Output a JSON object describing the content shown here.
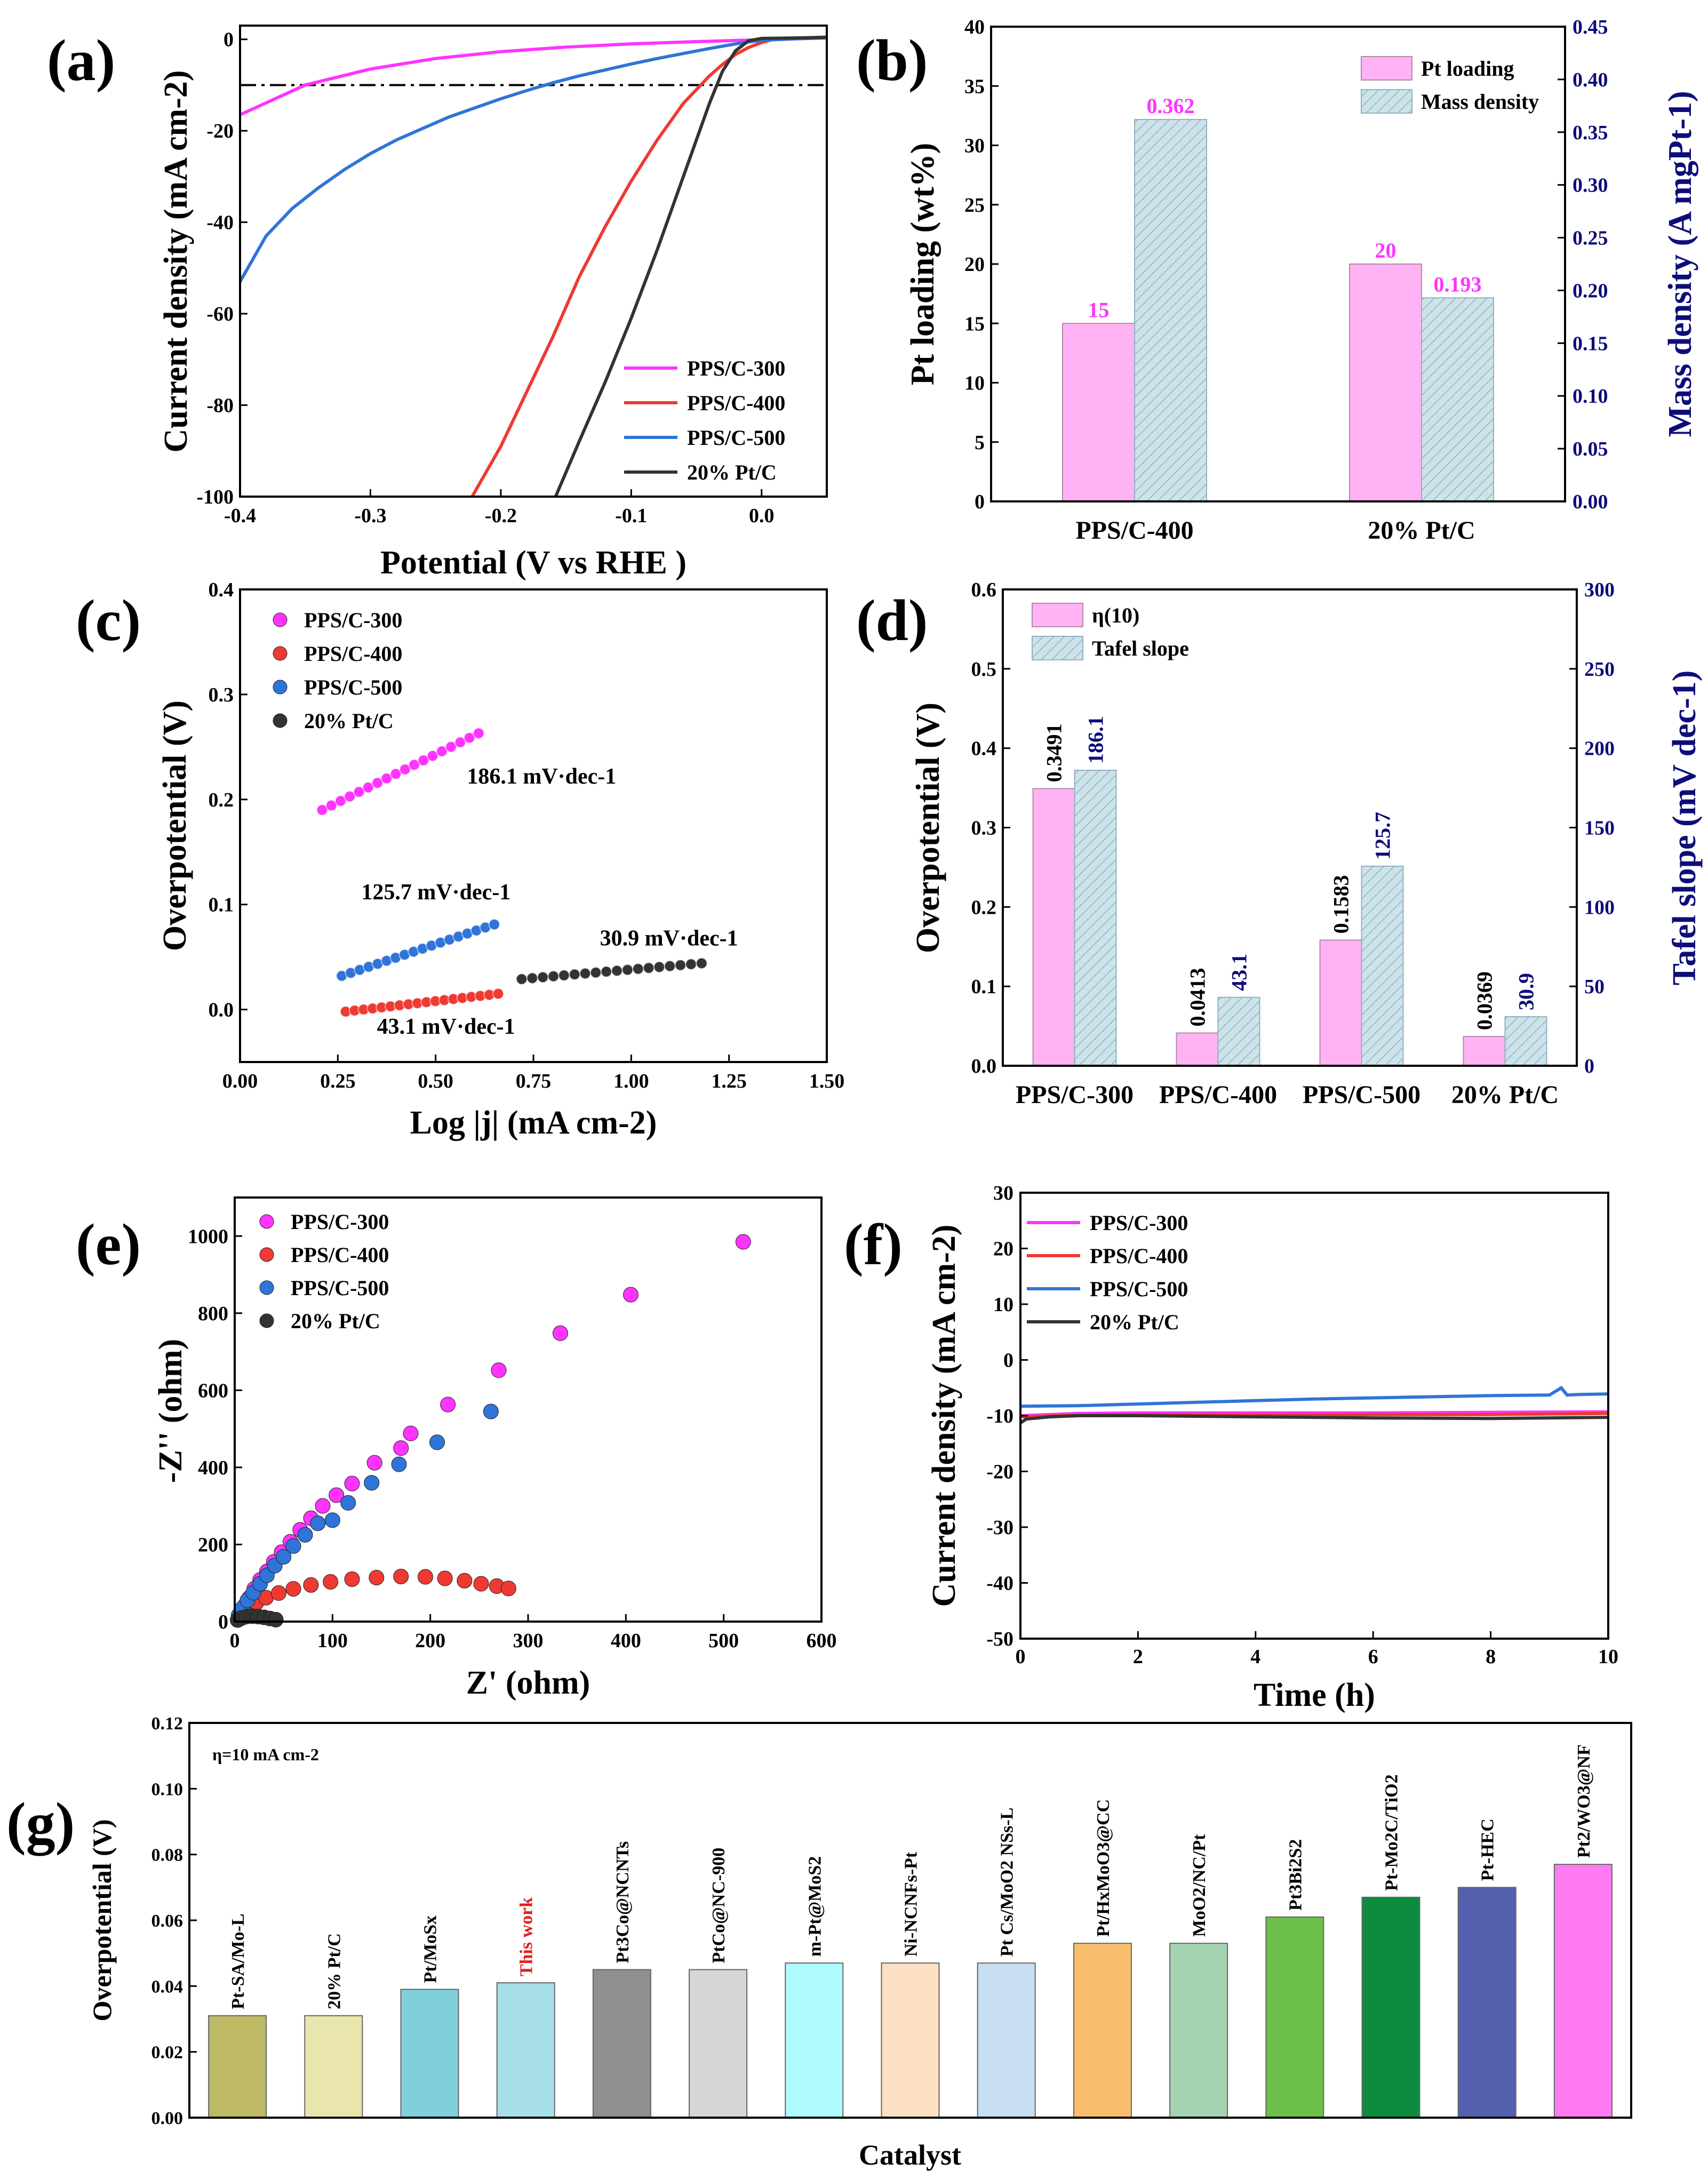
{
  "colors": {
    "magenta": "#ff33ff",
    "red": "#ee3a32",
    "blue": "#2f74d8",
    "black": "#333333",
    "pink_bar": "#ffb3f5",
    "hatch_bar": "#cde3ea",
    "navy_axis": "#0d0d7a"
  },
  "chart_data": [
    {
      "id": "a",
      "label": "(a)",
      "type": "line",
      "xlabel": "Potential (V vs RHE )",
      "ylabel": "Current density (mA cm-2)",
      "xlim": [
        -0.4,
        0.05
      ],
      "ylim": [
        -100,
        3
      ],
      "xticks": [
        "-0.4",
        "-0.3",
        "-0.2",
        "-0.1",
        "0.0"
      ],
      "yticks": [
        "-100",
        "-80",
        "-60",
        "-40",
        "-20",
        "0"
      ],
      "reference_line_y": -10,
      "series": [
        {
          "name": "PPS/C-300",
          "color": "#ff33ff",
          "x": [
            -0.4,
            -0.35,
            -0.3,
            -0.25,
            -0.2,
            -0.15,
            -0.1,
            -0.05,
            0.0,
            0.05
          ],
          "y": [
            -16.5,
            -10,
            -6.5,
            -4.2,
            -2.7,
            -1.7,
            -1.0,
            -0.5,
            -0.1,
            0.3
          ]
        },
        {
          "name": "PPS/C-400",
          "color": "#ee3a32",
          "x": [
            -0.222,
            -0.2,
            -0.18,
            -0.16,
            -0.14,
            -0.12,
            -0.1,
            -0.08,
            -0.06,
            -0.04,
            -0.03,
            -0.02,
            -0.01,
            0.0,
            0.01,
            0.05
          ],
          "y": [
            -100,
            -89,
            -77,
            -65,
            -52,
            -41,
            -31,
            -22,
            -14,
            -8,
            -5.5,
            -3.3,
            -1.8,
            -0.7,
            0.1,
            0.5
          ]
        },
        {
          "name": "PPS/C-500",
          "color": "#2f74d8",
          "x": [
            -0.4,
            -0.38,
            -0.36,
            -0.34,
            -0.32,
            -0.3,
            -0.28,
            -0.26,
            -0.24,
            -0.22,
            -0.2,
            -0.18,
            -0.16,
            -0.14,
            -0.12,
            -0.1,
            -0.08,
            -0.06,
            -0.04,
            -0.02,
            0.0,
            0.05
          ],
          "y": [
            -53,
            -43,
            -37,
            -32.5,
            -28.5,
            -25,
            -22,
            -19.5,
            -17,
            -15,
            -13,
            -11.2,
            -9.5,
            -8,
            -6.7,
            -5.4,
            -4.2,
            -3.1,
            -2.0,
            -1.0,
            -0.2,
            0.4
          ]
        },
        {
          "name": "20% Pt/C",
          "color": "#333333",
          "x": [
            -0.158,
            -0.14,
            -0.12,
            -0.1,
            -0.08,
            -0.06,
            -0.04,
            -0.03,
            -0.02,
            -0.01,
            0.0,
            0.05
          ],
          "y": [
            -100,
            -88,
            -75,
            -61,
            -46,
            -30,
            -14,
            -7,
            -2.5,
            -0.3,
            0.2,
            0.4
          ]
        }
      ]
    },
    {
      "id": "b",
      "label": "(b)",
      "type": "bar",
      "categories": [
        "PPS/C-400",
        "20% Pt/C"
      ],
      "ylabel": "Pt loading (wt%)",
      "ylabel_right": "Mass density (A mgPt-1)",
      "ylim": [
        0,
        40
      ],
      "ylim_right": [
        0,
        0.45
      ],
      "yticks": [
        "0",
        "5",
        "10",
        "15",
        "20",
        "25",
        "30",
        "35",
        "40"
      ],
      "yticks_right": [
        "0.00",
        "0.05",
        "0.10",
        "0.15",
        "0.20",
        "0.25",
        "0.30",
        "0.35",
        "0.40",
        "0.45"
      ],
      "series": [
        {
          "name": "Pt loading",
          "axis": "left",
          "values": [
            15,
            20
          ],
          "labels": [
            "15",
            "20"
          ]
        },
        {
          "name": "Mass density",
          "axis": "right",
          "values": [
            0.362,
            0.193
          ],
          "labels": [
            "0.362",
            "0.193"
          ]
        }
      ]
    },
    {
      "id": "c",
      "label": "(c)",
      "type": "scatter",
      "xlabel": "Log |j| (mA cm-2)",
      "ylabel": "Overpotential (V)",
      "xlim": [
        0,
        1.5
      ],
      "ylim": [
        -0.05,
        0.4
      ],
      "xticks": [
        "0.00",
        "0.25",
        "0.50",
        "0.75",
        "1.00",
        "1.25",
        "1.50"
      ],
      "yticks": [
        "0.0",
        "0.1",
        "0.2",
        "0.3",
        "0.4"
      ],
      "series": [
        {
          "name": "PPS/C-300",
          "color": "#ff33ff",
          "x0": 0.21,
          "x1": 0.61,
          "y0": 0.19,
          "y1": 0.263,
          "slope_label": "186.1 mV·dec-1"
        },
        {
          "name": "PPS/C-400",
          "color": "#ee3a32",
          "x0": 0.27,
          "x1": 0.66,
          "y0": -0.002,
          "y1": 0.015,
          "slope_label": "43.1 mV·dec-1"
        },
        {
          "name": "PPS/C-500",
          "color": "#2f74d8",
          "x0": 0.26,
          "x1": 0.65,
          "y0": 0.032,
          "y1": 0.081,
          "slope_label": "125.7 mV·dec-1"
        },
        {
          "name": "20% Pt/C",
          "color": "#333333",
          "x0": 0.72,
          "x1": 1.18,
          "y0": 0.029,
          "y1": 0.044,
          "slope_label": "30.9 mV·dec-1"
        }
      ]
    },
    {
      "id": "d",
      "label": "(d)",
      "type": "bar",
      "categories": [
        "PPS/C-300",
        "PPS/C-400",
        "PPS/C-500",
        "20% Pt/C"
      ],
      "ylabel": "Overpotential (V)",
      "ylabel_right": "Tafel slope (mV dec-1)",
      "ylim": [
        0,
        0.6
      ],
      "ylim_right": [
        0,
        300
      ],
      "yticks": [
        "0.0",
        "0.1",
        "0.2",
        "0.3",
        "0.4",
        "0.5",
        "0.6"
      ],
      "yticks_right": [
        "0",
        "50",
        "100",
        "150",
        "200",
        "250",
        "300"
      ],
      "series": [
        {
          "name": "η(10)",
          "axis": "left",
          "values": [
            0.3491,
            0.0413,
            0.1583,
            0.0369
          ],
          "labels": [
            "0.3491",
            "0.0413",
            "0.1583",
            "0.0369"
          ]
        },
        {
          "name": "Tafel slope",
          "axis": "right",
          "values": [
            186.1,
            43.1,
            125.7,
            30.9
          ],
          "labels": [
            "186.1",
            "43.1",
            "125.7",
            "30.9"
          ]
        }
      ]
    },
    {
      "id": "e",
      "label": "(e)",
      "type": "scatter",
      "xlabel": "Z' (ohm)",
      "ylabel": "-Z'' (ohm)",
      "xlim": [
        0,
        600
      ],
      "ylim": [
        0,
        1100
      ],
      "xticks": [
        "0",
        "100",
        "200",
        "300",
        "400",
        "500",
        "600"
      ],
      "yticks": [
        "0",
        "200",
        "400",
        "600",
        "800",
        "1000"
      ],
      "series": [
        {
          "name": "PPS/C-300",
          "color": "#ff33ff",
          "x": [
            5,
            10,
            15,
            20,
            26,
            33,
            40,
            48,
            57,
            67,
            78,
            90,
            104,
            120,
            143,
            170,
            180,
            218,
            270,
            333,
            405,
            520
          ],
          "y": [
            18,
            40,
            62,
            85,
            108,
            130,
            155,
            180,
            207,
            238,
            268,
            300,
            328,
            358,
            412,
            450,
            488,
            563,
            652,
            748,
            848,
            985
          ]
        },
        {
          "name": "PPS/C-400",
          "color": "#ee3a32",
          "x": [
            4,
            8,
            14,
            22,
            32,
            45,
            60,
            78,
            98,
            120,
            145,
            170,
            195,
            215,
            235,
            252,
            268,
            280
          ],
          "y": [
            8,
            18,
            32,
            48,
            62,
            74,
            85,
            95,
            103,
            110,
            114,
            117,
            116,
            112,
            106,
            98,
            92,
            86
          ]
        },
        {
          "name": "PPS/C-500",
          "color": "#2f74d8",
          "x": [
            4,
            8,
            13,
            19,
            26,
            33,
            41,
            50,
            60,
            72,
            85,
            100,
            116,
            140,
            168,
            207,
            262
          ],
          "y": [
            16,
            35,
            55,
            75,
            98,
            120,
            145,
            168,
            196,
            225,
            255,
            263,
            308,
            360,
            408,
            465,
            545
          ]
        },
        {
          "name": "20% Pt/C",
          "color": "#333333",
          "x": [
            3,
            7,
            12,
            18,
            24,
            30,
            36,
            42
          ],
          "y": [
            4,
            9,
            13,
            14,
            13,
            11,
            8,
            5
          ]
        }
      ]
    },
    {
      "id": "f",
      "label": "(f)",
      "type": "line",
      "xlabel": "Time (h)",
      "ylabel": "Current density (mA cm-2)",
      "xlim": [
        0,
        10
      ],
      "ylim": [
        -50,
        30
      ],
      "xticks": [
        "0",
        "2",
        "4",
        "6",
        "8",
        "10"
      ],
      "yticks": [
        "-50",
        "-40",
        "-30",
        "-20",
        "-10",
        "0",
        "10",
        "20",
        "30"
      ],
      "series": [
        {
          "name": "PPS/C-300",
          "color": "#ff33ff",
          "x": [
            0,
            1,
            2,
            4,
            6,
            8,
            10
          ],
          "y": [
            -10.0,
            -9.6,
            -9.5,
            -9.5,
            -9.5,
            -9.4,
            -9.3
          ]
        },
        {
          "name": "PPS/C-400",
          "color": "#ee3a32",
          "x": [
            0,
            1,
            2,
            4,
            6,
            8,
            10
          ],
          "y": [
            -10.2,
            -9.9,
            -9.8,
            -9.9,
            -9.8,
            -9.8,
            -9.6
          ]
        },
        {
          "name": "PPS/C-500",
          "color": "#2f74d8",
          "x": [
            0,
            1,
            2,
            3,
            4,
            5,
            6,
            7,
            8,
            9,
            9.2,
            9.3,
            9.5,
            10
          ],
          "y": [
            -8.3,
            -8.2,
            -7.9,
            -7.6,
            -7.3,
            -7.0,
            -6.8,
            -6.6,
            -6.4,
            -6.3,
            -5.0,
            -6.3,
            -6.2,
            -6.1
          ]
        },
        {
          "name": "20% Pt/C",
          "color": "#333333",
          "x": [
            0,
            0.1,
            0.5,
            1,
            2,
            4,
            6,
            8,
            10
          ],
          "y": [
            -11.3,
            -10.6,
            -10.2,
            -10.0,
            -10.0,
            -10.2,
            -10.4,
            -10.5,
            -10.3
          ]
        }
      ]
    },
    {
      "id": "g",
      "label": "(g)",
      "type": "bar",
      "xlabel": "Catalyst",
      "ylabel": "Overpotential (V)",
      "annotation": "η=10 mA cm-2",
      "ylim": [
        0,
        0.12
      ],
      "yticks": [
        "0.00",
        "0.02",
        "0.04",
        "0.06",
        "0.08",
        "0.10",
        "0.12"
      ],
      "categories": [
        "Pt-SA/Mo-L",
        "20% Pt/C",
        "Pt/MoSx",
        "This work",
        "Pt3Co@NCNTs",
        "PtCo@NC-900",
        "m-Pt@MoS2",
        "Ni-NCNFs-Pt",
        "Pt Cs/MoO2 NSs-L",
        "Pt/HxMoO3@CC",
        "MoO2/NC/Pt",
        "Pt3Bi2S2",
        "Pt-Mo2C/TiO2",
        "Pt-HEC",
        "Pt2/WO3@NF"
      ],
      "values": [
        0.031,
        0.031,
        0.039,
        0.041,
        0.045,
        0.045,
        0.047,
        0.047,
        0.047,
        0.053,
        0.053,
        0.061,
        0.067,
        0.07,
        0.077
      ],
      "bar_colors": [
        "#bdb965",
        "#e8e6ac",
        "#7fd0da",
        "#a6dfe9",
        "#8f8f8f",
        "#d6d6d6",
        "#aefafc",
        "#fbe0c3",
        "#c8def2",
        "#f8be6e",
        "#a3d3b0",
        "#6cc04a",
        "#0d8c40",
        "#5360ad",
        "#ff7bf4"
      ]
    }
  ]
}
